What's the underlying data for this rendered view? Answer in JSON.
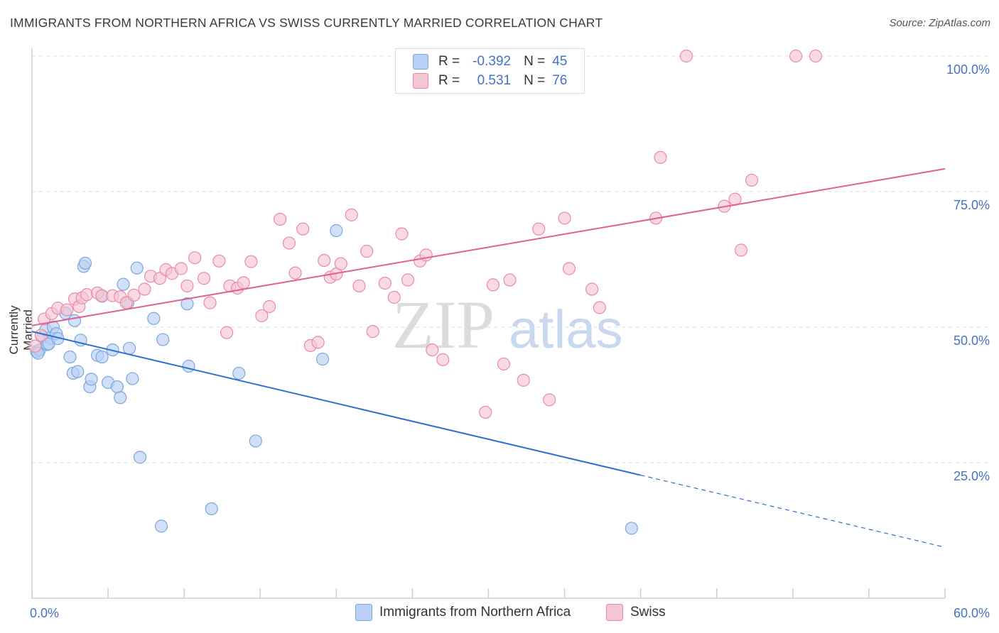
{
  "title": "IMMIGRANTS FROM NORTHERN AFRICA VS SWISS CURRENTLY MARRIED CORRELATION CHART",
  "source": "Source: ZipAtlas.com",
  "watermark": {
    "zip": "ZIP",
    "atlas": "atlas"
  },
  "colors": {
    "blue": "#7aa7e0",
    "blue_fill": "#b8d0f3",
    "blue_line": "#2f6fcf",
    "pink": "#e98aa8",
    "pink_fill": "#f6c5d4",
    "pink_line": "#e0628d",
    "tick_text": "#4472c4",
    "grid": "#dddddd"
  },
  "stats": {
    "rows": [
      {
        "r_label": "R =",
        "r_value": "-0.392",
        "n_label": "N =",
        "n_value": "45"
      },
      {
        "r_label": "R =",
        "r_value": "0.531",
        "n_label": "N =",
        "n_value": "76"
      }
    ]
  },
  "legend": {
    "items": [
      "Immigrants from Northern Africa",
      "Swiss"
    ]
  },
  "chart_data": {
    "type": "scatter",
    "ylabel": "Currently Married",
    "xlim": [
      0,
      60
    ],
    "ylim": [
      0,
      100
    ],
    "x_tick_labels": [
      "0.0%",
      "60.0%"
    ],
    "y_ticks": [
      25,
      50,
      75,
      100
    ],
    "y_tick_labels": [
      "25.0%",
      "50.0%",
      "75.0%",
      "100.0%"
    ],
    "grid": true,
    "legend_position": "bottom",
    "series": [
      {
        "name": "Immigrants from Northern Africa",
        "points": [
          [
            0.3,
            45.5
          ],
          [
            0.5,
            45.8
          ],
          [
            0.7,
            48.2
          ],
          [
            0.9,
            49.5
          ],
          [
            1.0,
            46.8
          ],
          [
            1.2,
            48.0
          ],
          [
            1.4,
            50.0
          ],
          [
            1.6,
            48.8
          ],
          [
            2.2,
            52.6
          ],
          [
            2.5,
            44.5
          ],
          [
            2.7,
            41.5
          ],
          [
            2.8,
            51.2
          ],
          [
            3.0,
            41.8
          ],
          [
            3.2,
            47.6
          ],
          [
            3.4,
            61.2
          ],
          [
            3.5,
            61.8
          ],
          [
            3.8,
            39.0
          ],
          [
            3.9,
            40.4
          ],
          [
            4.3,
            44.8
          ],
          [
            4.6,
            44.5
          ],
          [
            4.6,
            55.7
          ],
          [
            5.0,
            39.8
          ],
          [
            5.3,
            45.8
          ],
          [
            5.6,
            39.0
          ],
          [
            5.8,
            37.0
          ],
          [
            6.0,
            57.9
          ],
          [
            6.3,
            54.5
          ],
          [
            6.4,
            46.1
          ],
          [
            6.6,
            40.5
          ],
          [
            6.9,
            60.9
          ],
          [
            7.1,
            26.0
          ],
          [
            8.0,
            51.6
          ],
          [
            8.5,
            13.3
          ],
          [
            8.6,
            47.7
          ],
          [
            10.2,
            54.3
          ],
          [
            10.3,
            42.8
          ],
          [
            11.8,
            16.5
          ],
          [
            13.6,
            41.5
          ],
          [
            14.7,
            29.0
          ],
          [
            19.1,
            44.1
          ],
          [
            20.0,
            67.8
          ],
          [
            39.4,
            12.9
          ],
          [
            0.4,
            45.2
          ],
          [
            1.1,
            46.9
          ],
          [
            1.7,
            47.9
          ]
        ],
        "trend": {
          "x": [
            0,
            40
          ],
          "y": [
            49.2,
            22.7
          ]
        },
        "trend_dashed": {
          "x": [
            40,
            60
          ],
          "y": [
            22.7,
            9.4
          ]
        }
      },
      {
        "name": "Swiss",
        "points": [
          [
            0.2,
            46.5
          ],
          [
            0.6,
            48.5
          ],
          [
            0.8,
            51.5
          ],
          [
            1.3,
            52.5
          ],
          [
            1.7,
            53.5
          ],
          [
            2.3,
            53.2
          ],
          [
            2.8,
            55.2
          ],
          [
            3.1,
            53.8
          ],
          [
            3.3,
            55.4
          ],
          [
            3.6,
            56.0
          ],
          [
            4.3,
            56.3
          ],
          [
            4.6,
            55.8
          ],
          [
            5.3,
            55.8
          ],
          [
            5.8,
            55.6
          ],
          [
            6.2,
            54.5
          ],
          [
            6.7,
            55.9
          ],
          [
            7.4,
            57.0
          ],
          [
            7.8,
            59.4
          ],
          [
            8.4,
            59.0
          ],
          [
            8.8,
            60.6
          ],
          [
            9.2,
            59.9
          ],
          [
            9.8,
            60.8
          ],
          [
            10.2,
            57.6
          ],
          [
            10.7,
            62.8
          ],
          [
            11.3,
            59.0
          ],
          [
            11.7,
            54.5
          ],
          [
            12.3,
            62.2
          ],
          [
            12.8,
            49.0
          ],
          [
            13.0,
            57.6
          ],
          [
            13.5,
            57.2
          ],
          [
            13.9,
            58.2
          ],
          [
            14.4,
            62.1
          ],
          [
            15.1,
            52.1
          ],
          [
            15.6,
            53.8
          ],
          [
            16.3,
            69.9
          ],
          [
            16.9,
            65.5
          ],
          [
            17.3,
            60.0
          ],
          [
            17.8,
            68.1
          ],
          [
            18.3,
            46.6
          ],
          [
            18.8,
            47.2
          ],
          [
            19.2,
            62.3
          ],
          [
            19.6,
            59.2
          ],
          [
            20.0,
            59.8
          ],
          [
            20.3,
            61.7
          ],
          [
            21.0,
            70.7
          ],
          [
            21.5,
            57.6
          ],
          [
            22.0,
            64.0
          ],
          [
            22.4,
            49.2
          ],
          [
            23.2,
            58.1
          ],
          [
            23.8,
            55.5
          ],
          [
            24.3,
            67.2
          ],
          [
            24.7,
            58.7
          ],
          [
            25.5,
            62.2
          ],
          [
            25.9,
            63.3
          ],
          [
            26.3,
            45.8
          ],
          [
            27.0,
            44.0
          ],
          [
            29.8,
            34.3
          ],
          [
            30.3,
            57.8
          ],
          [
            31.0,
            43.2
          ],
          [
            31.4,
            58.7
          ],
          [
            32.3,
            40.2
          ],
          [
            33.3,
            68.1
          ],
          [
            34.0,
            36.6
          ],
          [
            35.0,
            70.1
          ],
          [
            35.3,
            60.8
          ],
          [
            36.8,
            57.0
          ],
          [
            37.3,
            53.6
          ],
          [
            41.0,
            70.1
          ],
          [
            41.3,
            81.3
          ],
          [
            43.0,
            100.0
          ],
          [
            45.5,
            72.3
          ],
          [
            46.2,
            73.6
          ],
          [
            46.6,
            64.2
          ],
          [
            47.3,
            77.1
          ],
          [
            50.2,
            100.0
          ],
          [
            51.5,
            100.0
          ]
        ],
        "trend": {
          "x": [
            0,
            60
          ],
          "y": [
            50.3,
            79.2
          ]
        }
      }
    ]
  }
}
